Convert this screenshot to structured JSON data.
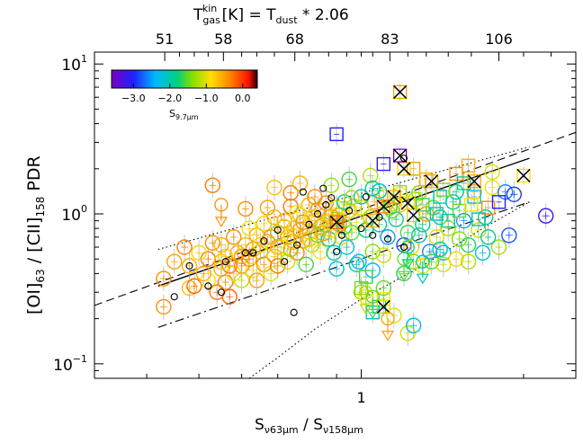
{
  "chart_data": {
    "type": "scatter",
    "xscale": "log",
    "yscale": "log",
    "xlim": [
      0.32,
      2.5
    ],
    "ylim": [
      0.08,
      12
    ],
    "bottom_axis": {
      "label_main": "S",
      "label_sub1": "ν63μm",
      "label_sep": " / S",
      "label_sub2": "ν158μm",
      "ticks": [
        {
          "value": 1,
          "label": "1"
        }
      ]
    },
    "top_axis": {
      "label_part1": "T",
      "label_sub": "gas",
      "label_sup": "kin",
      "label_part2": " [K] = T",
      "label_sub2": "dust",
      "label_part3": " * 2.06",
      "ticks": [
        {
          "label": "51",
          "x": 0.432
        },
        {
          "label": "58",
          "x": 0.555
        },
        {
          "label": "68",
          "x": 0.753
        },
        {
          "label": "83",
          "x": 1.13
        },
        {
          "label": "106",
          "x": 1.8
        }
      ]
    },
    "left_axis": {
      "label_open": "[OI]",
      "label_sub1": "63",
      "label_mid": " / [CII]",
      "label_sub2": "158",
      "label_end": " PDR",
      "ticks": [
        {
          "value": 0.1,
          "base": "10",
          "exp": "−1"
        },
        {
          "value": 1,
          "base": "10",
          "exp": "0"
        },
        {
          "value": 10,
          "base": "10",
          "exp": "1"
        }
      ]
    },
    "colorbar": {
      "label_main": "S",
      "label_sub": "9.7μm",
      "range": [
        -3.6,
        0.4
      ],
      "ticks": [
        {
          "value": -3.0,
          "label": "−3.0"
        },
        {
          "value": -2.0,
          "label": "−2.0"
        },
        {
          "value": -1.0,
          "label": "−1.0"
        },
        {
          "value": 0.0,
          "label": "0.0"
        }
      ]
    },
    "lines": [
      {
        "style": "solid",
        "points": [
          [
            0.42,
            0.33
          ],
          [
            2.05,
            2.35
          ]
        ]
      },
      {
        "style": "dashed",
        "points": [
          [
            0.32,
            0.245
          ],
          [
            2.5,
            3.5
          ]
        ]
      },
      {
        "style": "dashdot",
        "points": [
          [
            0.42,
            0.175
          ],
          [
            2.05,
            1.2
          ]
        ]
      },
      {
        "style": "dotted",
        "points": [
          [
            0.42,
            0.58
          ],
          [
            2.05,
            2.8
          ]
        ]
      },
      {
        "style": "dotted",
        "points": [
          [
            0.62,
            0.08
          ],
          [
            0.7,
            0.11
          ],
          [
            0.82,
            0.17
          ],
          [
            1.0,
            0.27
          ],
          [
            1.3,
            0.45
          ],
          [
            1.7,
            0.82
          ],
          [
            2.05,
            1.2
          ]
        ]
      }
    ],
    "circles": [
      [
        0.43,
        0.24,
        -0.4
      ],
      [
        0.43,
        0.37,
        -0.4
      ],
      [
        0.48,
        0.45,
        -0.6
      ],
      [
        0.47,
        0.6,
        -0.3
      ],
      [
        0.48,
        0.32,
        -0.7
      ],
      [
        0.49,
        0.33,
        -0.2
      ],
      [
        0.51,
        0.4,
        -0.5
      ],
      [
        0.52,
        0.5,
        -0.3
      ],
      [
        0.53,
        0.64,
        -0.4
      ],
      [
        0.52,
        0.36,
        -0.9
      ],
      [
        0.54,
        0.3,
        -0.3
      ],
      [
        0.55,
        0.43,
        -0.6
      ],
      [
        0.56,
        0.52,
        -0.8
      ],
      [
        0.56,
        0.35,
        -0.4
      ],
      [
        0.57,
        0.28,
        -0.2
      ],
      [
        0.58,
        0.4,
        -0.9
      ],
      [
        0.59,
        0.55,
        -0.6
      ],
      [
        0.6,
        0.45,
        -0.4
      ],
      [
        0.6,
        0.36,
        -1.1
      ],
      [
        0.61,
        0.62,
        -0.7
      ],
      [
        0.62,
        0.5,
        -0.3
      ],
      [
        0.63,
        0.42,
        -0.9
      ],
      [
        0.64,
        0.72,
        -0.6
      ],
      [
        0.64,
        0.36,
        -0.5
      ],
      [
        0.65,
        0.56,
        -1.2
      ],
      [
        0.66,
        0.46,
        -0.4
      ],
      [
        0.66,
        0.86,
        -0.8
      ],
      [
        0.67,
        0.65,
        -0.5
      ],
      [
        0.68,
        0.4,
        -1.0
      ],
      [
        0.69,
        0.52,
        -0.7
      ],
      [
        0.7,
        0.75,
        -1.3
      ],
      [
        0.7,
        0.45,
        -0.3
      ],
      [
        0.71,
        0.6,
        -0.9
      ],
      [
        0.72,
        0.9,
        -0.6
      ],
      [
        0.73,
        0.48,
        -1.1
      ],
      [
        0.73,
        0.7,
        -0.5
      ],
      [
        0.74,
        0.58,
        -1.4
      ],
      [
        0.75,
        0.8,
        -0.7
      ],
      [
        0.76,
        0.55,
        -0.4
      ],
      [
        0.77,
        0.98,
        -1.0
      ],
      [
        0.78,
        0.66,
        -0.5
      ],
      [
        0.79,
        0.46,
        -1.6
      ],
      [
        0.8,
        0.76,
        -0.8
      ],
      [
        0.81,
        0.62,
        -1.2
      ],
      [
        0.82,
        0.9,
        -0.6
      ],
      [
        0.83,
        0.72,
        -1.5
      ],
      [
        0.84,
        0.56,
        -0.9
      ],
      [
        0.85,
        0.85,
        -1.3
      ],
      [
        0.86,
        1.0,
        -0.7
      ],
      [
        0.87,
        0.68,
        -1.8
      ],
      [
        0.88,
        0.78,
        -1.0
      ],
      [
        0.89,
        0.55,
        -2.0
      ],
      [
        0.9,
        0.92,
        -1.4
      ],
      [
        0.92,
        0.7,
        -0.8
      ],
      [
        0.93,
        0.82,
        -1.7
      ],
      [
        0.94,
        0.6,
        -2.2
      ],
      [
        0.95,
        1.05,
        -1.1
      ],
      [
        0.96,
        0.75,
        -1.5
      ],
      [
        0.98,
        0.88,
        -0.9
      ],
      [
        0.99,
        0.48,
        -2.4
      ],
      [
        0.61,
        1.08,
        -0.4
      ],
      [
        0.67,
        1.1,
        -0.5
      ],
      [
        0.74,
        1.12,
        -0.3
      ],
      [
        0.8,
        1.15,
        -0.6
      ],
      [
        0.86,
        1.18,
        -0.4
      ],
      [
        0.69,
        0.95,
        -0.6
      ],
      [
        0.76,
        1.02,
        -0.9
      ],
      [
        0.83,
        1.06,
        -0.5
      ],
      [
        0.9,
        1.1,
        -1.0
      ],
      [
        0.97,
        1.12,
        -0.7
      ],
      [
        0.45,
        0.48,
        -0.5
      ],
      [
        0.5,
        0.55,
        -0.8
      ],
      [
        0.55,
        0.62,
        -0.6
      ],
      [
        0.58,
        0.7,
        -0.4
      ],
      [
        0.62,
        0.8,
        -0.9
      ],
      [
        0.57,
        0.45,
        -0.3
      ],
      [
        0.63,
        0.58,
        -0.5
      ],
      [
        0.68,
        0.7,
        -0.4
      ],
      [
        0.72,
        0.82,
        -0.7
      ],
      [
        0.75,
        0.65,
        -0.6
      ],
      [
        0.78,
        0.88,
        -0.4
      ],
      [
        0.81,
        0.95,
        -0.8
      ],
      [
        0.85,
        0.74,
        -0.5
      ],
      [
        0.88,
        0.96,
        -0.6
      ],
      [
        0.91,
        0.85,
        -0.4
      ],
      [
        0.55,
        0.48,
        -0.7
      ],
      [
        0.6,
        0.52,
        -0.5
      ],
      [
        0.65,
        0.62,
        -0.8
      ],
      [
        0.7,
        0.6,
        -0.6
      ],
      [
        0.74,
        0.72,
        -0.9
      ],
      [
        0.77,
        0.78,
        -0.5
      ],
      [
        0.8,
        0.68,
        -0.7
      ],
      [
        0.84,
        0.82,
        -0.6
      ],
      [
        0.87,
        0.88,
        -0.8
      ],
      [
        0.91,
        0.98,
        -0.5
      ],
      [
        1.0,
        1.1,
        -1.0
      ],
      [
        1.02,
        0.78,
        -1.8
      ],
      [
        1.04,
        0.95,
        -1.2
      ],
      [
        1.06,
        1.2,
        -0.6
      ],
      [
        1.08,
        0.85,
        -2.0
      ],
      [
        1.1,
        1.3,
        -0.9
      ],
      [
        1.12,
        0.7,
        -2.5
      ],
      [
        1.14,
        1.05,
        -1.4
      ],
      [
        1.16,
        0.92,
        -1.9
      ],
      [
        1.18,
        1.15,
        -0.7
      ],
      [
        1.2,
        0.62,
        -2.8
      ],
      [
        1.22,
        0.75,
        -1.6
      ],
      [
        1.24,
        0.6,
        -0.8
      ],
      [
        1.26,
        1.25,
        -1.2
      ],
      [
        1.28,
        0.72,
        -2.1
      ],
      [
        1.3,
        0.85,
        -1.8
      ],
      [
        1.32,
        1.0,
        -0.5
      ],
      [
        1.34,
        0.56,
        -2.6
      ],
      [
        1.36,
        1.1,
        -1.5
      ],
      [
        1.38,
        0.7,
        -1.0
      ],
      [
        1.4,
        0.95,
        -1.9
      ],
      [
        1.42,
        0.55,
        -2.3
      ],
      [
        1.45,
        0.8,
        -1.2
      ],
      [
        1.48,
        1.2,
        -2.0
      ],
      [
        1.52,
        0.68,
        -1.4
      ],
      [
        1.55,
        0.9,
        -2.5
      ],
      [
        1.58,
        0.62,
        -1.7
      ],
      [
        1.62,
        1.4,
        -0.6
      ],
      [
        1.65,
        0.78,
        -1.1
      ],
      [
        1.7,
        0.95,
        -2.0
      ],
      [
        1.75,
        1.5,
        -0.9
      ],
      [
        1.8,
        0.6,
        -1.3
      ],
      [
        1.85,
        1.4,
        -2.6
      ],
      [
        2.2,
        0.97,
        -3.2
      ],
      [
        1.92,
        1.35,
        -2.9
      ],
      [
        1.88,
        0.72,
        -2.8
      ],
      [
        1.2,
        0.4,
        -1.7
      ],
      [
        1.25,
        0.48,
        -1.4
      ],
      [
        1.3,
        0.45,
        -0.9
      ],
      [
        1.35,
        0.48,
        -1.6
      ],
      [
        1.42,
        0.46,
        -1.1
      ],
      [
        1.5,
        0.5,
        -0.8
      ],
      [
        1.1,
        0.32,
        -1.5
      ],
      [
        1.05,
        0.42,
        -2.4
      ],
      [
        0.98,
        0.46,
        -2.0
      ],
      [
        0.9,
        0.43,
        -2.2
      ],
      [
        1.15,
        0.21,
        -1.0
      ],
      [
        1.22,
        0.16,
        -1.1
      ],
      [
        1.25,
        0.18,
        -2.3
      ],
      [
        1.0,
        0.3,
        -1.3
      ],
      [
        1.02,
        0.28,
        -0.9
      ],
      [
        1.05,
        0.56,
        -1.4
      ],
      [
        1.1,
        0.53,
        -1.1
      ],
      [
        1.68,
        0.55,
        -2.2
      ],
      [
        1.72,
        0.7,
        -1.9
      ],
      [
        0.74,
        1.38,
        -0.3
      ],
      [
        0.82,
        1.3,
        -0.4
      ],
      [
        0.77,
        1.6,
        -0.6
      ],
      [
        0.69,
        1.5,
        -0.7
      ],
      [
        1.0,
        1.3,
        -2.1
      ],
      [
        0.93,
        1.2,
        -1.8
      ],
      [
        0.96,
        1.28,
        -1.2
      ],
      [
        1.08,
        1.42,
        -2.1
      ],
      [
        1.18,
        1.35,
        -0.9
      ],
      [
        1.13,
        1.1,
        -1.5
      ],
      [
        0.88,
        1.55,
        -1.3
      ],
      [
        0.95,
        1.7,
        -1.6
      ],
      [
        1.04,
        1.8,
        -1.2
      ],
      [
        1.05,
        1.48,
        -1.9
      ],
      [
        1.4,
        0.58,
        -2.0
      ],
      [
        0.53,
        1.55,
        -0.3
      ],
      [
        1.58,
        0.48,
        -1.2
      ],
      [
        1.5,
        1.4,
        -1.8
      ],
      [
        1.28,
        1.38,
        -1.4
      ],
      [
        1.75,
        1.9,
        -1.0
      ]
    ],
    "small_black_circles": [
      [
        0.45,
        0.28
      ],
      [
        0.48,
        0.45
      ],
      [
        0.52,
        0.33
      ],
      [
        0.56,
        0.48
      ],
      [
        0.61,
        0.55
      ],
      [
        0.66,
        0.66
      ],
      [
        0.7,
        0.78
      ],
      [
        0.72,
        0.48
      ],
      [
        0.76,
        0.62
      ],
      [
        0.8,
        0.85
      ],
      [
        0.83,
        1.0
      ],
      [
        0.86,
        1.15
      ],
      [
        0.88,
        1.28
      ],
      [
        0.92,
        0.72
      ],
      [
        0.95,
        1.05
      ],
      [
        0.78,
        1.4
      ],
      [
        0.85,
        1.48
      ],
      [
        1.02,
        1.3
      ],
      [
        1.08,
        0.95
      ],
      [
        1.12,
        0.68
      ],
      [
        1.2,
        0.6
      ],
      [
        1.0,
        0.8
      ],
      [
        1.05,
        0.72
      ],
      [
        0.9,
        0.56
      ],
      [
        1.2,
        2.35
      ],
      [
        0.75,
        0.22
      ],
      [
        0.55,
        0.3
      ],
      [
        0.63,
        0.55
      ]
    ],
    "squares": [
      [
        0.9,
        3.4,
        -3.0
      ],
      [
        1.1,
        2.15,
        -3.1
      ],
      [
        1.18,
        1.4,
        -1.3
      ],
      [
        1.25,
        2.0,
        -0.5
      ],
      [
        1.32,
        1.7,
        -0.6
      ],
      [
        1.4,
        1.3,
        -2.1
      ],
      [
        1.5,
        1.85,
        -0.4
      ],
      [
        1.55,
        1.6,
        -1.8
      ],
      [
        1.58,
        2.1,
        -0.6
      ],
      [
        1.62,
        1.3,
        -2.3
      ],
      [
        1.72,
        1.1,
        -0.4
      ],
      [
        1.52,
        1.05,
        -1.5
      ],
      [
        1.45,
        0.9,
        -1.8
      ],
      [
        1.65,
        0.92,
        -2.0
      ],
      [
        1.8,
        1.2,
        -3.0
      ],
      [
        1.0,
        0.32,
        -1.4
      ],
      [
        1.02,
        0.38,
        -1.6
      ],
      [
        1.1,
        0.27,
        -0.9
      ],
      [
        1.08,
        0.24,
        -1.8
      ],
      [
        1.05,
        0.22,
        -2.1
      ],
      [
        1.3,
        1.15,
        -1.6
      ],
      [
        1.42,
        1.45,
        -1.4
      ],
      [
        1.38,
        1.0,
        -2.2
      ],
      [
        1.6,
        1.15,
        -0.9
      ]
    ],
    "crosses": [
      [
        1.18,
        6.5,
        -0.5
      ],
      [
        1.2,
        2.0,
        -0.8
      ],
      [
        1.15,
        1.3,
        -0.5
      ],
      [
        1.1,
        1.12,
        -0.3
      ],
      [
        1.35,
        1.65,
        -0.6
      ],
      [
        1.25,
        0.98,
        -1.1
      ],
      [
        1.22,
        1.18,
        -0.9
      ],
      [
        1.62,
        1.65,
        -0.5
      ],
      [
        2.0,
        1.8,
        -0.9
      ],
      [
        0.9,
        0.88,
        -0.2
      ],
      [
        1.05,
        0.9,
        -0.6
      ],
      [
        1.18,
        2.45,
        -3.6
      ],
      [
        1.1,
        0.24,
        -1.0
      ]
    ],
    "down_arrows": [
      [
        0.55,
        1.15,
        -0.4
      ],
      [
        1.12,
        0.2,
        -0.5
      ],
      [
        1.05,
        0.28,
        -1.6
      ],
      [
        1.2,
        0.5,
        -1.5
      ],
      [
        1.22,
        0.6,
        -1.9
      ],
      [
        1.3,
        0.48,
        -2.0
      ],
      [
        1.02,
        0.3,
        -1.2
      ]
    ]
  }
}
